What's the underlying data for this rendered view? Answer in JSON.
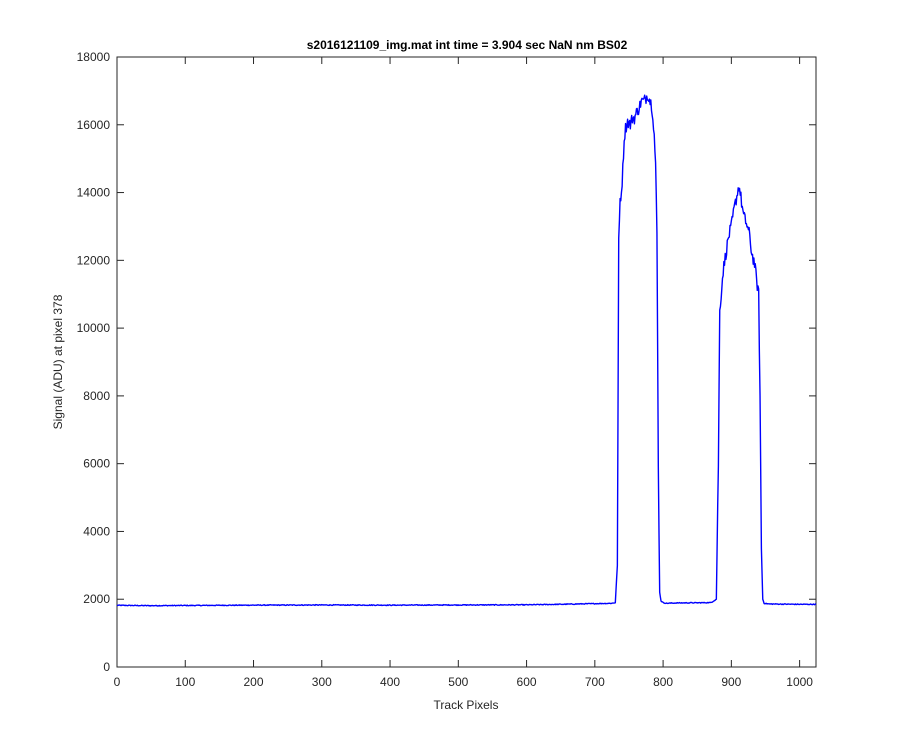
{
  "chart_data": {
    "type": "line",
    "title": "s2016121109_img.mat int time = 3.904 sec  NaN nm BS02",
    "xlabel": "Track Pixels",
    "ylabel": "Signal (ADU) at pixel 378",
    "xlim": [
      0,
      1024
    ],
    "ylim": [
      0,
      18000
    ],
    "xticks": [
      0,
      100,
      200,
      300,
      400,
      500,
      600,
      700,
      800,
      900,
      1000
    ],
    "yticks": [
      0,
      2000,
      4000,
      6000,
      8000,
      10000,
      12000,
      14000,
      16000,
      18000
    ],
    "grid": false,
    "series": [
      {
        "color": "#0000ff",
        "x": [
          0,
          50,
          100,
          150,
          200,
          300,
          400,
          500,
          600,
          650,
          700,
          725,
          730,
          733,
          735,
          737,
          739,
          741,
          743,
          745,
          748,
          752,
          755,
          758,
          762,
          765,
          768,
          772,
          775,
          778,
          781,
          783,
          785,
          787,
          789,
          791,
          793,
          795,
          797,
          800,
          805,
          820,
          850,
          870,
          878,
          881,
          883,
          885,
          888,
          892,
          896,
          900,
          904,
          908,
          911,
          913,
          915,
          918,
          922,
          926,
          930,
          934,
          937,
          940,
          942,
          944,
          946,
          948,
          955,
          1000,
          1024
        ],
        "y": [
          1820,
          1810,
          1815,
          1820,
          1825,
          1830,
          1825,
          1830,
          1835,
          1850,
          1870,
          1880,
          1900,
          3000,
          12500,
          13800,
          14000,
          14700,
          15600,
          15900,
          16100,
          16000,
          16200,
          16200,
          16400,
          16500,
          16700,
          16700,
          16800,
          16900,
          16700,
          16600,
          16300,
          15700,
          14800,
          12800,
          6000,
          2200,
          1950,
          1900,
          1880,
          1890,
          1895,
          1900,
          2000,
          6000,
          10500,
          11000,
          11700,
          12200,
          12700,
          13000,
          13500,
          13900,
          14200,
          14000,
          13700,
          13300,
          13100,
          12800,
          12200,
          11900,
          11400,
          11000,
          8000,
          3500,
          2000,
          1880,
          1860,
          1850,
          1850
        ]
      }
    ]
  }
}
